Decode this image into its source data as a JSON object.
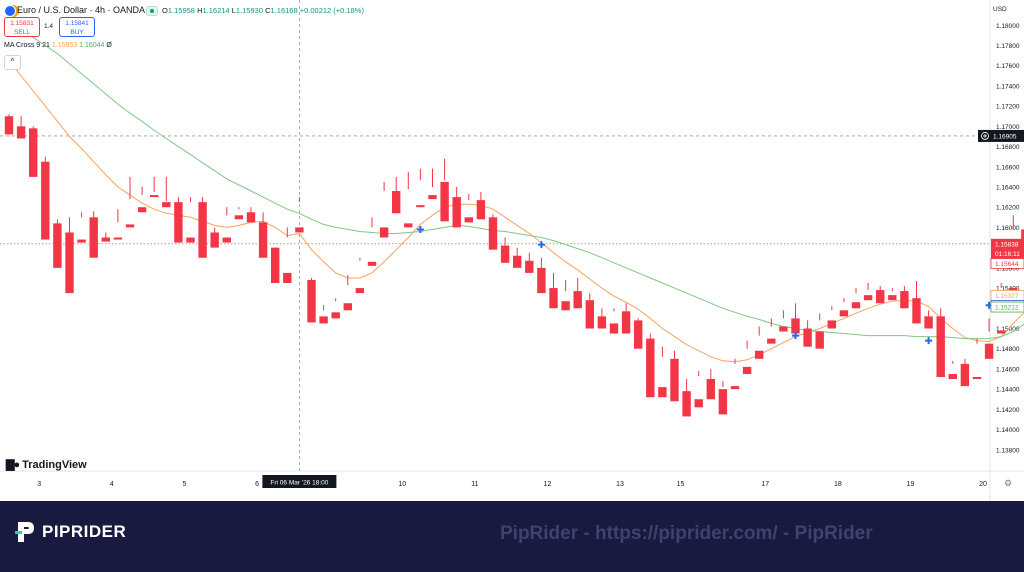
{
  "header": {
    "symbol_title": "Euro / U.S. Dollar · 4h · OANDA",
    "ohlc": {
      "o_label": "O",
      "o": "1.15958",
      "h_label": "H",
      "h": "1.16214",
      "l_label": "L",
      "l": "1.15930",
      "c_label": "C",
      "c": "1.16168",
      "change": "+0.00212 (+0.18%)"
    },
    "sell_price": "1.15831",
    "sell_label": "SELL",
    "spread": "1.4",
    "buy_price": "1.15841",
    "buy_label": "BUY",
    "indicator": {
      "name": "MA Cross 9 21",
      "fast": "1.15953",
      "slow": "1.16044",
      "extra": "Ø"
    },
    "collapse_glyph": "^"
  },
  "currency_label": "USD",
  "logo_text": "TradingView",
  "footer": {
    "brand": "PIPRIDER",
    "watermark": "PipRider - https://piprider.com/ - PipRider"
  },
  "colors": {
    "up": "#089981",
    "down": "#f23645",
    "ma_fast": "#f7a25c",
    "ma_slow": "#81c784",
    "cross_marker": "#2962ff",
    "footer_bg": "#181a3f"
  },
  "chart_data": {
    "type": "candlestick",
    "ylim": [
      1.136,
      1.1825
    ],
    "y_ticks": [
      "1.18000",
      "1.17800",
      "1.17600",
      "1.17400",
      "1.17200",
      "1.17000",
      "1.16800",
      "1.16600",
      "1.16400",
      "1.16200",
      "1.16000",
      "1.15800",
      "1.15600",
      "1.15400",
      "1.15200",
      "1.15000",
      "1.14800",
      "1.14600",
      "1.14400",
      "1.14200",
      "1.14000",
      "1.13800"
    ],
    "x_ticks": [
      {
        "label": "3",
        "x": 2.5
      },
      {
        "label": "4",
        "x": 8.5
      },
      {
        "label": "5",
        "x": 14.5
      },
      {
        "label": "6",
        "x": 20.5
      },
      {
        "label": "10",
        "x": 32.5
      },
      {
        "label": "11",
        "x": 38.5
      },
      {
        "label": "12",
        "x": 44.5
      },
      {
        "label": "13",
        "x": 50.5
      },
      {
        "label": "15",
        "x": 55.5
      },
      {
        "label": "17",
        "x": 62.5
      },
      {
        "label": "18",
        "x": 68.5
      },
      {
        "label": "19",
        "x": 74.5
      },
      {
        "label": "20",
        "x": 80.5
      }
    ],
    "crosshair": {
      "x": 24,
      "price": 1.16905,
      "price_label": "1.16905",
      "time_label": "Fri 06 Mar '26   18:00"
    },
    "current_price": {
      "price": 1.15838,
      "label": "1.15838",
      "countdown": "01:16:11"
    },
    "axis_tags": [
      {
        "price": 1.15644,
        "label": "1.15644",
        "color": "#f23645"
      },
      {
        "price": 1.15327,
        "label": "1.15327",
        "color": "#f7a25c"
      },
      {
        "price": 1.15226,
        "label": "1.15226",
        "color": "#2962ff"
      },
      {
        "price": 1.15212,
        "label": "1.15212",
        "color": "#4caf50"
      }
    ],
    "candles": [
      [
        1.171,
        1.1712,
        1.1695,
        1.1692
      ],
      [
        1.17,
        1.171,
        1.169,
        1.1688
      ],
      [
        1.1698,
        1.17,
        1.166,
        1.165
      ],
      [
        1.1665,
        1.167,
        1.16,
        1.1588
      ],
      [
        1.1604,
        1.1608,
        1.1588,
        1.156
      ],
      [
        1.1595,
        1.161,
        1.159,
        1.1535
      ],
      [
        1.1588,
        1.1615,
        1.161,
        1.1585
      ],
      [
        1.161,
        1.1616,
        1.159,
        1.157
      ],
      [
        1.159,
        1.1595,
        1.1588,
        1.1586
      ],
      [
        1.159,
        1.1618,
        1.1605,
        1.1588
      ],
      [
        1.1603,
        1.165,
        1.1628,
        1.16
      ],
      [
        1.162,
        1.164,
        1.1632,
        1.1615
      ],
      [
        1.1632,
        1.165,
        1.1635,
        1.163
      ],
      [
        1.1625,
        1.165,
        1.1626,
        1.162
      ],
      [
        1.1625,
        1.163,
        1.159,
        1.1585
      ],
      [
        1.159,
        1.163,
        1.1625,
        1.1585
      ],
      [
        1.1625,
        1.163,
        1.16,
        1.157
      ],
      [
        1.1595,
        1.16,
        1.159,
        1.158
      ],
      [
        1.159,
        1.162,
        1.1612,
        1.1585
      ],
      [
        1.1612,
        1.162,
        1.1618,
        1.1608
      ],
      [
        1.1615,
        1.162,
        1.161,
        1.1605
      ],
      [
        1.1605,
        1.1615,
        1.1575,
        1.157
      ],
      [
        1.158,
        1.158,
        1.1555,
        1.1545
      ],
      [
        1.1555,
        1.16,
        1.159,
        1.1545
      ],
      [
        1.16,
        1.163,
        1.1625,
        1.1595
      ],
      [
        1.1548,
        1.155,
        1.151,
        1.1506
      ],
      [
        1.1512,
        1.1523,
        1.1518,
        1.1505
      ],
      [
        1.1516,
        1.153,
        1.1527,
        1.151
      ],
      [
        1.1525,
        1.1553,
        1.1543,
        1.1518
      ],
      [
        1.154,
        1.157,
        1.1567,
        1.1535
      ],
      [
        1.1566,
        1.161,
        1.16,
        1.1562
      ],
      [
        1.16,
        1.1645,
        1.1636,
        1.159
      ],
      [
        1.1636,
        1.165,
        1.1626,
        1.1614
      ],
      [
        1.1604,
        1.1655,
        1.1638,
        1.16
      ],
      [
        1.1622,
        1.1658,
        1.1647,
        1.162
      ],
      [
        1.1632,
        1.1658,
        1.164,
        1.1628
      ],
      [
        1.1645,
        1.1668,
        1.1647,
        1.1606
      ],
      [
        1.163,
        1.164,
        1.1609,
        1.16
      ],
      [
        1.161,
        1.1633,
        1.1627,
        1.1605
      ],
      [
        1.1627,
        1.1635,
        1.1615,
        1.1608
      ],
      [
        1.161,
        1.1613,
        1.1585,
        1.1578
      ],
      [
        1.1582,
        1.159,
        1.1573,
        1.1565
      ],
      [
        1.1572,
        1.158,
        1.1568,
        1.156
      ],
      [
        1.1567,
        1.1575,
        1.1562,
        1.1555
      ],
      [
        1.156,
        1.157,
        1.1538,
        1.1535
      ],
      [
        1.154,
        1.1555,
        1.1525,
        1.152
      ],
      [
        1.1527,
        1.1548,
        1.1537,
        1.1518
      ],
      [
        1.1537,
        1.155,
        1.1527,
        1.152
      ],
      [
        1.1528,
        1.1535,
        1.1508,
        1.15
      ],
      [
        1.1512,
        1.152,
        1.1505,
        1.15
      ],
      [
        1.1505,
        1.152,
        1.1517,
        1.1495
      ],
      [
        1.1517,
        1.1525,
        1.1505,
        1.1495
      ],
      [
        1.1508,
        1.151,
        1.149,
        1.148
      ],
      [
        1.149,
        1.1495,
        1.1438,
        1.1432
      ],
      [
        1.1442,
        1.1482,
        1.1472,
        1.1432
      ],
      [
        1.147,
        1.1478,
        1.1436,
        1.1428
      ],
      [
        1.1438,
        1.145,
        1.142,
        1.1413
      ],
      [
        1.143,
        1.1458,
        1.1453,
        1.1422
      ],
      [
        1.145,
        1.146,
        1.1443,
        1.143
      ],
      [
        1.144,
        1.1448,
        1.1442,
        1.1415
      ],
      [
        1.1443,
        1.147,
        1.1465,
        1.144
      ],
      [
        1.1462,
        1.1488,
        1.148,
        1.1455
      ],
      [
        1.1478,
        1.1502,
        1.1493,
        1.147
      ],
      [
        1.149,
        1.151,
        1.1502,
        1.1485
      ],
      [
        1.1502,
        1.1518,
        1.151,
        1.1497
      ],
      [
        1.151,
        1.1525,
        1.15,
        1.1495
      ],
      [
        1.15,
        1.1508,
        1.1497,
        1.1482
      ],
      [
        1.1497,
        1.1515,
        1.1508,
        1.148
      ],
      [
        1.1508,
        1.1522,
        1.1518,
        1.15
      ],
      [
        1.1518,
        1.153,
        1.1526,
        1.1512
      ],
      [
        1.1526,
        1.154,
        1.1535,
        1.152
      ],
      [
        1.1533,
        1.1545,
        1.1538,
        1.1528
      ],
      [
        1.1538,
        1.1542,
        1.1533,
        1.1525
      ],
      [
        1.1533,
        1.154,
        1.1537,
        1.1528
      ],
      [
        1.1537,
        1.1542,
        1.153,
        1.152
      ],
      [
        1.153,
        1.1547,
        1.151,
        1.1505
      ],
      [
        1.1512,
        1.1518,
        1.1509,
        1.15
      ],
      [
        1.1512,
        1.152,
        1.1455,
        1.1452
      ],
      [
        1.1455,
        1.1468,
        1.1465,
        1.145
      ],
      [
        1.1465,
        1.147,
        1.145,
        1.1443
      ],
      [
        1.1452,
        1.149,
        1.1485,
        1.145
      ],
      [
        1.1485,
        1.151,
        1.1497,
        1.147
      ],
      [
        1.1498,
        1.1545,
        1.154,
        1.1495
      ],
      [
        1.154,
        1.1612,
        1.1598,
        1.1532
      ],
      [
        1.1598,
        1.1605,
        1.1583,
        1.1578
      ],
      [
        1.1583,
        1.159,
        1.1575,
        1.157
      ],
      [
        1.1585,
        1.1592,
        1.1578,
        1.157
      ]
    ],
    "series": [
      {
        "values": [
          1.1765,
          1.175,
          1.1735,
          1.172,
          1.1705,
          1.169,
          1.1678,
          1.1665,
          1.1652,
          1.164,
          1.1632,
          1.1624,
          1.1618,
          1.1614,
          1.1612,
          1.161,
          1.1606,
          1.1602,
          1.16,
          1.1602,
          1.1605,
          1.1606,
          1.16,
          1.1592,
          1.1594,
          1.1578,
          1.1566,
          1.1555,
          1.155,
          1.155,
          1.1555,
          1.1566,
          1.1578,
          1.159,
          1.1603,
          1.1612,
          1.162,
          1.1623,
          1.1623,
          1.1622,
          1.1618,
          1.161,
          1.1602,
          1.1594,
          1.1585,
          1.1575,
          1.1566,
          1.1558,
          1.1549,
          1.154,
          1.1532,
          1.1526,
          1.1519,
          1.151,
          1.15,
          1.1492,
          1.1484,
          1.1478,
          1.1472,
          1.1468,
          1.1467,
          1.1469,
          1.1474,
          1.148,
          1.1486,
          1.1492,
          1.1496,
          1.15,
          1.1505,
          1.151,
          1.1515,
          1.152,
          1.1524,
          1.1527,
          1.1528,
          1.1527,
          1.1522,
          1.151,
          1.15,
          1.1491,
          1.1488,
          1.1487,
          1.1492,
          1.1505,
          1.1517,
          1.1525,
          1.1532
        ]
      },
      {
        "values": [
          1.1802,
          1.1795,
          1.1788,
          1.178,
          1.1772,
          1.1762,
          1.1752,
          1.1742,
          1.1732,
          1.1722,
          1.1713,
          1.1705,
          1.1696,
          1.1688,
          1.168,
          1.1672,
          1.1664,
          1.1656,
          1.1648,
          1.1642,
          1.1636,
          1.163,
          1.1624,
          1.1618,
          1.1614,
          1.1608,
          1.1603,
          1.16,
          1.1598,
          1.1596,
          1.1595,
          1.1594,
          1.1594,
          1.1595,
          1.1596,
          1.1598,
          1.16,
          1.1602,
          1.1601,
          1.1599,
          1.1597,
          1.1596,
          1.1594,
          1.1592,
          1.159,
          1.1587,
          1.1583,
          1.1579,
          1.1575,
          1.157,
          1.1565,
          1.156,
          1.1555,
          1.155,
          1.1545,
          1.154,
          1.1535,
          1.153,
          1.1525,
          1.152,
          1.1516,
          1.1512,
          1.1509,
          1.1505,
          1.1502,
          1.15,
          1.1498,
          1.1497,
          1.1496,
          1.1495,
          1.1494,
          1.1493,
          1.1493,
          1.1493,
          1.1493,
          1.1492,
          1.1492,
          1.1492,
          1.1491,
          1.149,
          1.149,
          1.149,
          1.1492,
          1.1497,
          1.1505,
          1.1512,
          1.152
        ]
      }
    ],
    "cross_markers": [
      {
        "x": 34,
        "y": 1.1598
      },
      {
        "x": 44,
        "y": 1.1583
      },
      {
        "x": 65,
        "y": 1.1493
      },
      {
        "x": 76,
        "y": 1.1488
      },
      {
        "x": 81,
        "y": 1.1523
      }
    ]
  }
}
